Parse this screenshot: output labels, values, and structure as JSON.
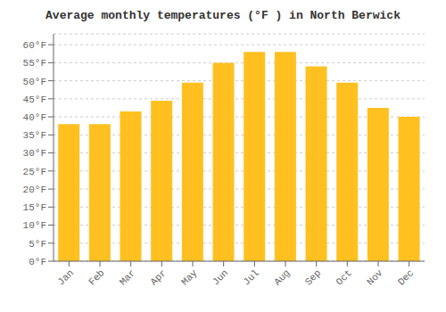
{
  "chart_data": {
    "type": "bar",
    "title": "Average monthly temperatures (°F ) in North Berwick",
    "categories": [
      "Jan",
      "Feb",
      "Mar",
      "Apr",
      "May",
      "Jun",
      "Jul",
      "Aug",
      "Sep",
      "Oct",
      "Nov",
      "Dec"
    ],
    "values": [
      38,
      38,
      41.5,
      44.5,
      49.5,
      55,
      58,
      58,
      54,
      49.5,
      42.5,
      40
    ],
    "color": "#FFC020",
    "ylim": [
      0,
      63
    ],
    "yticks": [
      {
        "value": 0,
        "label": "0°F"
      },
      {
        "value": 5,
        "label": "5°F"
      },
      {
        "value": 10,
        "label": "10°F"
      },
      {
        "value": 15,
        "label": "15°F"
      },
      {
        "value": 20,
        "label": "20°F"
      },
      {
        "value": 25,
        "label": "25°F"
      },
      {
        "value": 30,
        "label": "30°F"
      },
      {
        "value": 35,
        "label": "35°F"
      },
      {
        "value": 40,
        "label": "40°F"
      },
      {
        "value": 45,
        "label": "45°F"
      },
      {
        "value": 50,
        "label": "50°F"
      },
      {
        "value": 55,
        "label": "55°F"
      },
      {
        "value": 60,
        "label": "60°F"
      }
    ],
    "grid": true
  }
}
